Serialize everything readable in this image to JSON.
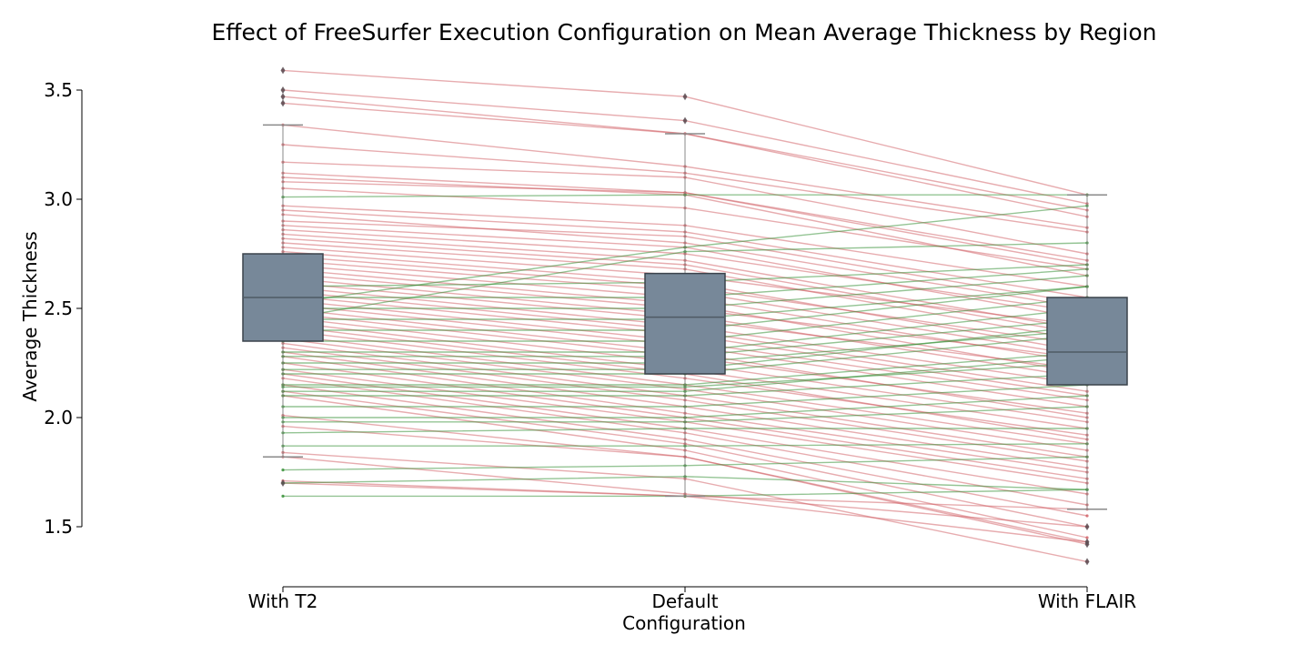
{
  "chart_data": {
    "type": "box",
    "title": "Effect of FreeSurfer Execution Configuration on Mean Average Thickness by Region",
    "xlabel": "Configuration",
    "ylabel": "Average Thickness",
    "categories": [
      "With T2",
      "Default",
      "With FLAIR"
    ],
    "yticks": [
      "1.5",
      "2.0",
      "2.5",
      "3.0",
      "3.5"
    ],
    "ylim": [
      1.25,
      3.62
    ],
    "grid": false,
    "legend": "none",
    "boxes": [
      {
        "category": "With T2",
        "q1": 2.35,
        "median": 2.55,
        "q3": 2.75,
        "whisker_low": 1.82,
        "whisker_high": 3.34,
        "outliers": [
          3.59,
          3.5,
          3.47,
          3.44,
          1.7
        ]
      },
      {
        "category": "Default",
        "q1": 2.2,
        "median": 2.46,
        "q3": 2.66,
        "whisker_low": 1.64,
        "whisker_high": 3.3,
        "outliers": [
          3.47,
          3.36
        ]
      },
      {
        "category": "With FLAIR",
        "q1": 2.15,
        "median": 2.3,
        "q3": 2.55,
        "whisker_low": 1.58,
        "whisker_high": 3.02,
        "outliers": [
          1.5,
          1.43,
          1.42,
          1.34
        ]
      }
    ],
    "regions_decrease": [
      [
        3.59,
        3.47,
        3.02
      ],
      [
        3.5,
        3.36,
        2.98
      ],
      [
        3.47,
        3.3,
        2.95
      ],
      [
        3.44,
        3.3,
        2.92
      ],
      [
        3.34,
        3.15,
        2.87
      ],
      [
        3.25,
        3.12,
        2.85
      ],
      [
        3.17,
        3.1,
        2.75
      ],
      [
        3.12,
        3.03,
        2.7
      ],
      [
        3.1,
        3.02,
        2.65
      ],
      [
        3.08,
        3.03,
        2.72
      ],
      [
        3.05,
        2.96,
        2.68
      ],
      [
        2.97,
        2.88,
        2.6
      ],
      [
        2.95,
        2.85,
        2.55
      ],
      [
        2.93,
        2.8,
        2.5
      ],
      [
        2.9,
        2.83,
        2.52
      ],
      [
        2.88,
        2.78,
        2.45
      ],
      [
        2.86,
        2.75,
        2.48
      ],
      [
        2.84,
        2.72,
        2.4
      ],
      [
        2.82,
        2.7,
        2.38
      ],
      [
        2.8,
        2.68,
        2.35
      ],
      [
        2.78,
        2.65,
        2.42
      ],
      [
        2.76,
        2.62,
        2.3
      ],
      [
        2.74,
        2.6,
        2.33
      ],
      [
        2.72,
        2.58,
        2.28
      ],
      [
        2.7,
        2.55,
        2.25
      ],
      [
        2.68,
        2.52,
        2.2
      ],
      [
        2.66,
        2.5,
        2.27
      ],
      [
        2.64,
        2.47,
        2.18
      ],
      [
        2.62,
        2.45,
        2.22
      ],
      [
        2.6,
        2.42,
        2.15
      ],
      [
        2.58,
        2.4,
        2.12
      ],
      [
        2.56,
        2.38,
        2.1
      ],
      [
        2.54,
        2.35,
        2.08
      ],
      [
        2.52,
        2.33,
        2.05
      ],
      [
        2.5,
        2.3,
        2.0
      ],
      [
        2.48,
        2.28,
        2.02
      ],
      [
        2.46,
        2.25,
        1.98
      ],
      [
        2.44,
        2.22,
        1.95
      ],
      [
        2.42,
        2.2,
        1.9
      ],
      [
        2.4,
        2.18,
        1.92
      ],
      [
        2.38,
        2.15,
        1.88
      ],
      [
        2.36,
        2.13,
        1.85
      ],
      [
        2.34,
        2.1,
        1.82
      ],
      [
        2.32,
        2.08,
        1.8
      ],
      [
        2.3,
        2.05,
        1.77
      ],
      [
        2.28,
        2.02,
        1.75
      ],
      [
        2.25,
        2.0,
        1.72
      ],
      [
        2.22,
        1.98,
        1.7
      ],
      [
        2.2,
        1.95,
        1.65
      ],
      [
        2.18,
        1.93,
        1.6
      ],
      [
        2.15,
        1.9,
        1.55
      ],
      [
        2.12,
        1.88,
        1.5
      ],
      [
        2.1,
        1.85,
        1.45
      ],
      [
        2.01,
        1.82,
        1.42
      ],
      [
        1.96,
        1.82,
        1.43
      ],
      [
        1.84,
        1.72,
        1.34
      ],
      [
        1.82,
        1.65,
        1.5
      ],
      [
        1.71,
        1.64,
        1.43
      ],
      [
        1.7,
        1.64,
        1.58
      ]
    ],
    "regions_increase": [
      [
        3.01,
        3.02,
        3.02
      ],
      [
        2.52,
        2.78,
        2.97
      ],
      [
        2.45,
        2.76,
        2.8
      ],
      [
        2.6,
        2.62,
        2.7
      ],
      [
        2.55,
        2.55,
        2.68
      ],
      [
        2.5,
        2.5,
        2.65
      ],
      [
        2.45,
        2.45,
        2.6
      ],
      [
        2.4,
        2.4,
        2.6
      ],
      [
        2.35,
        2.35,
        2.55
      ],
      [
        2.3,
        2.3,
        2.5
      ],
      [
        2.28,
        2.28,
        2.45
      ],
      [
        2.25,
        2.25,
        2.4
      ],
      [
        2.22,
        2.22,
        2.42
      ],
      [
        2.2,
        2.2,
        2.38
      ],
      [
        2.15,
        2.15,
        2.3
      ],
      [
        2.14,
        2.14,
        2.25
      ],
      [
        2.12,
        2.12,
        2.28
      ],
      [
        2.1,
        2.1,
        2.2
      ],
      [
        2.05,
        2.05,
        2.15
      ],
      [
        2.0,
        2.0,
        2.1
      ],
      [
        1.98,
        1.98,
        2.05
      ],
      [
        1.93,
        1.95,
        1.95
      ],
      [
        1.87,
        1.87,
        1.88
      ],
      [
        1.76,
        1.78,
        1.82
      ],
      [
        1.7,
        1.73,
        1.67
      ],
      [
        1.64,
        1.64,
        1.67
      ]
    ],
    "colors": {
      "box_fill": "#778899",
      "box_edge": "#3a424b",
      "decrease_line": "#d05a60",
      "increase_line": "#2a8a2a",
      "whisker": "#8a8a8a",
      "outlier": "#5a4f55"
    }
  }
}
